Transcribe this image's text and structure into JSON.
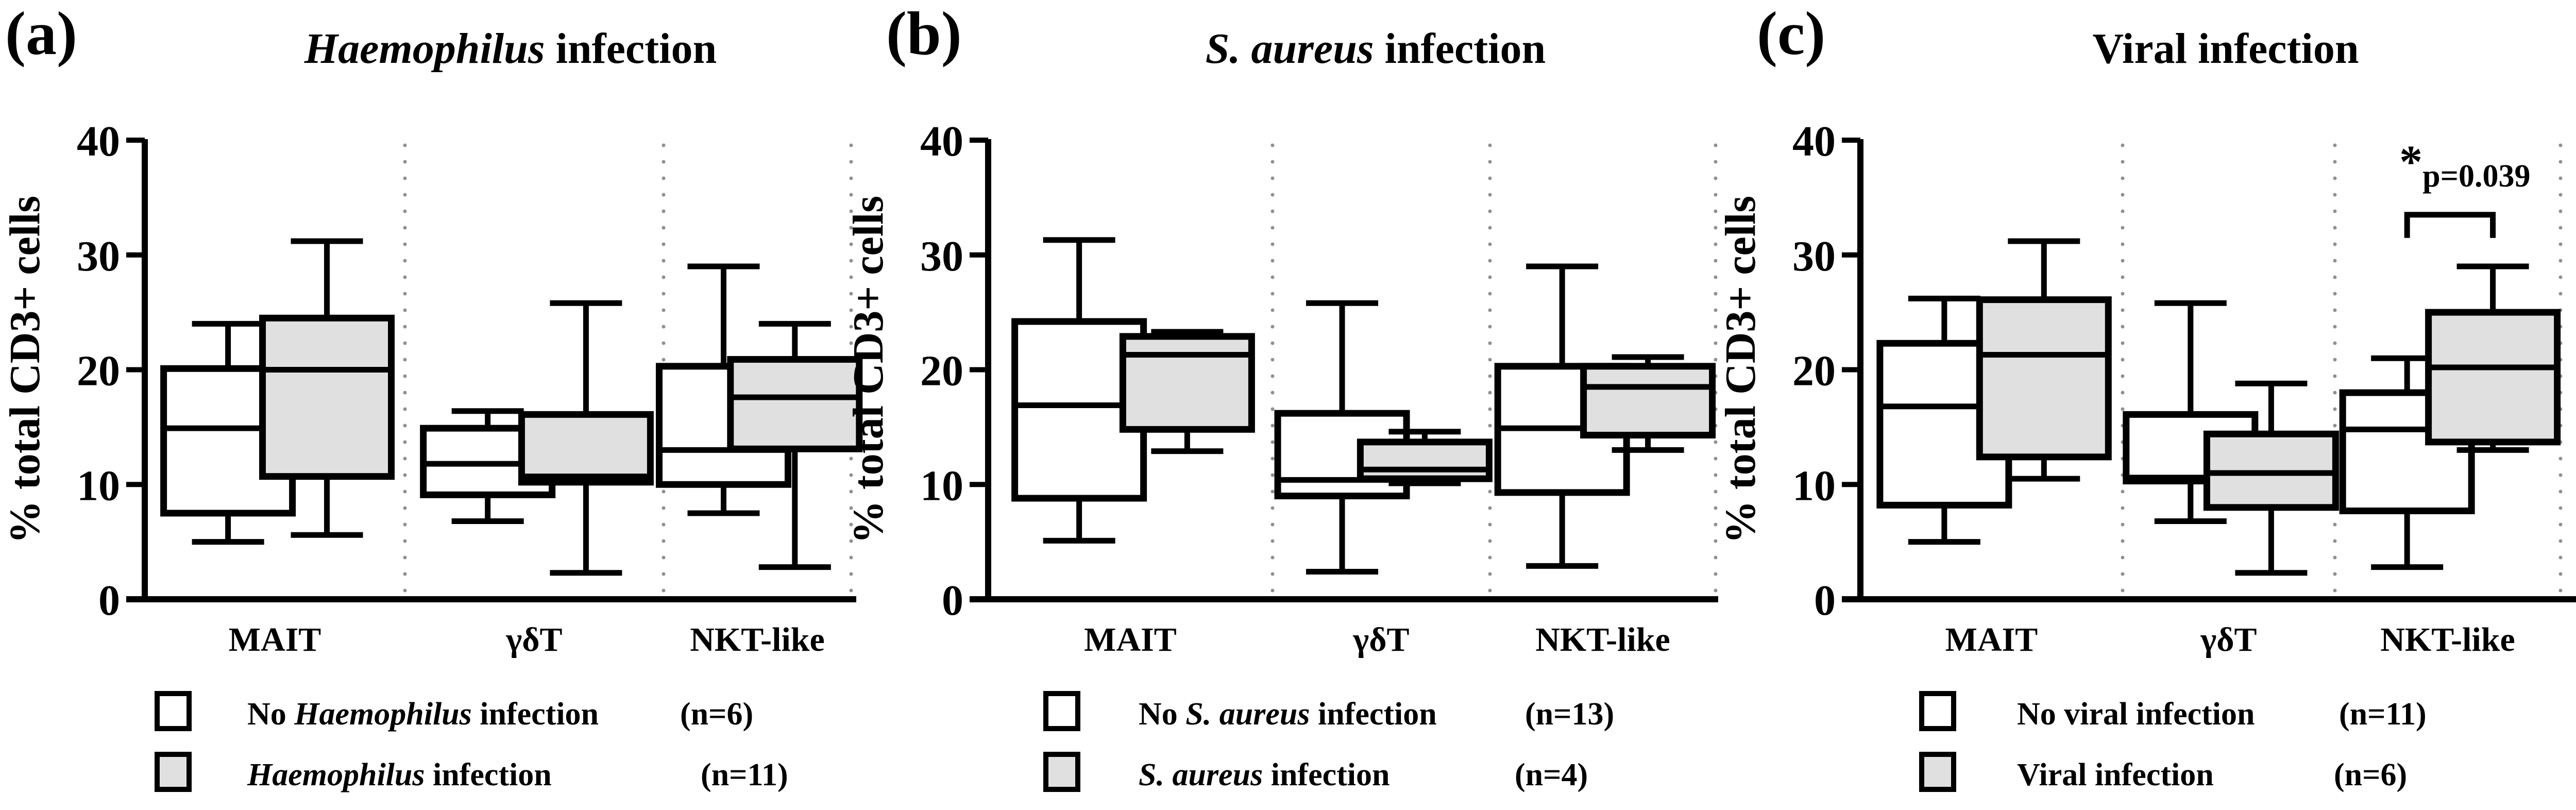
{
  "figure": {
    "colors": {
      "no_infection_fill": "#ffffff",
      "infection_fill": "#e0e0e0",
      "stroke": "#000000",
      "separator": "#909090"
    }
  },
  "chart_data": [
    {
      "type": "box",
      "panel_label": "(a)",
      "title_italic": "Haemophilus",
      "title_rest": " infection",
      "ylabel": "% total CD3+ cells",
      "ylim": [
        0,
        40
      ],
      "yticks": [
        "0",
        "10",
        "20",
        "30",
        "40"
      ],
      "categories": [
        "MAIT",
        "γδT",
        "NKT-like"
      ],
      "separators": "dotted",
      "legend": [
        {
          "prefix": "No ",
          "italic": "Haemophilus",
          "suffix": " infection",
          "n": "(n=6)",
          "fill": "no_infection_fill"
        },
        {
          "prefix": "",
          "italic": "Haemophilus",
          "suffix": " infection",
          "n": "(n=11)",
          "fill": "infection_fill"
        }
      ],
      "series": [
        {
          "name": "No Haemophilus infection",
          "n": 6,
          "boxes": [
            {
              "min": 5.0,
              "q1": 7.5,
              "median": 14.9,
              "q3": 20.1,
              "max": 24.0
            },
            {
              "min": 6.8,
              "q1": 9.1,
              "median": 11.8,
              "q3": 14.9,
              "max": 16.4
            },
            {
              "min": 7.5,
              "q1": 10.0,
              "median": 13.0,
              "q3": 20.3,
              "max": 29.0
            }
          ]
        },
        {
          "name": "Haemophilus infection",
          "n": 11,
          "boxes": [
            {
              "min": 5.6,
              "q1": 10.7,
              "median": 20.0,
              "q3": 24.5,
              "max": 31.2
            },
            {
              "min": 2.3,
              "q1": 10.2,
              "median": 10.7,
              "q3": 16.1,
              "max": 25.8
            },
            {
              "min": 2.8,
              "q1": 13.1,
              "median": 17.6,
              "q3": 20.9,
              "max": 24.0
            }
          ]
        }
      ],
      "annotations": []
    },
    {
      "type": "box",
      "panel_label": "(b)",
      "title_italic": "S. aureus",
      "title_rest": " infection",
      "ylabel": "% total CD3+ cells",
      "ylim": [
        0,
        40
      ],
      "yticks": [
        "0",
        "10",
        "20",
        "30",
        "40"
      ],
      "categories": [
        "MAIT",
        "γδT",
        "NKT-like"
      ],
      "separators": "dotted",
      "legend": [
        {
          "prefix": "No ",
          "italic": "S. aureus",
          "suffix": " infection",
          "n": "(n=13)",
          "fill": "no_infection_fill"
        },
        {
          "prefix": "",
          "italic": "S. aureus",
          "suffix": " infection",
          "n": "(n=4)",
          "fill": "infection_fill"
        }
      ],
      "series": [
        {
          "name": "No S. aureus infection",
          "n": 13,
          "boxes": [
            {
              "min": 5.1,
              "q1": 8.8,
              "median": 16.9,
              "q3": 24.2,
              "max": 31.3
            },
            {
              "min": 2.4,
              "q1": 9.0,
              "median": 10.4,
              "q3": 16.2,
              "max": 25.8
            },
            {
              "min": 2.9,
              "q1": 9.3,
              "median": 14.9,
              "q3": 20.3,
              "max": 29.0
            }
          ]
        },
        {
          "name": "S. aureus infection",
          "n": 4,
          "boxes": [
            {
              "min": 12.9,
              "q1": 14.8,
              "median": 21.3,
              "q3": 22.9,
              "max": 23.3
            },
            {
              "min": 10.1,
              "q1": 10.5,
              "median": 11.3,
              "q3": 13.7,
              "max": 14.6
            },
            {
              "min": 13.0,
              "q1": 14.3,
              "median": 18.5,
              "q3": 20.3,
              "max": 21.1
            }
          ]
        }
      ],
      "annotations": []
    },
    {
      "type": "box",
      "panel_label": "(c)",
      "title_italic": "",
      "title_rest": "Viral infection",
      "ylabel": "% total CD3+ cells",
      "ylim": [
        0,
        40
      ],
      "yticks": [
        "0",
        "10",
        "20",
        "30",
        "40"
      ],
      "categories": [
        "MAIT",
        "γδT",
        "NKT-like"
      ],
      "separators": "dotted",
      "legend": [
        {
          "prefix": "No viral infection",
          "italic": "",
          "suffix": "",
          "n": "(n=11)",
          "fill": "no_infection_fill"
        },
        {
          "prefix": "Viral infection",
          "italic": "",
          "suffix": "",
          "n": "(n=6)",
          "fill": "infection_fill"
        }
      ],
      "series": [
        {
          "name": "No viral infection",
          "n": 11,
          "boxes": [
            {
              "min": 5.0,
              "q1": 8.2,
              "median": 16.8,
              "q3": 22.3,
              "max": 26.2
            },
            {
              "min": 6.8,
              "q1": 10.3,
              "median": 10.6,
              "q3": 16.1,
              "max": 25.8
            },
            {
              "min": 2.8,
              "q1": 7.7,
              "median": 14.8,
              "q3": 18.0,
              "max": 21.0
            }
          ]
        },
        {
          "name": "Viral infection",
          "n": 6,
          "boxes": [
            {
              "min": 10.5,
              "q1": 12.4,
              "median": 21.3,
              "q3": 26.1,
              "max": 31.2
            },
            {
              "min": 2.3,
              "q1": 8.0,
              "median": 11.0,
              "q3": 14.4,
              "max": 18.8
            },
            {
              "min": 13.0,
              "q1": 13.7,
              "median": 20.2,
              "q3": 25.0,
              "max": 29.0
            }
          ]
        }
      ],
      "annotations": [
        {
          "category": "NKT-like",
          "star": "*",
          "text": "p=0.039",
          "bracket_at": 33.5
        }
      ]
    }
  ]
}
